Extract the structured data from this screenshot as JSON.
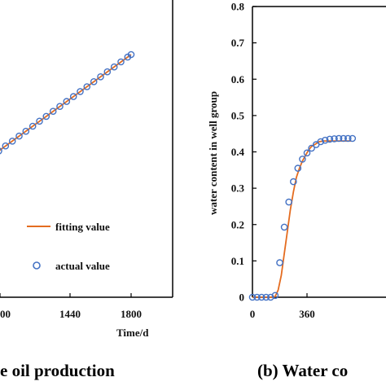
{
  "chart_data": [
    {
      "type": "line",
      "panel": "left",
      "caption": "e oil production",
      "xlabel": "Time/d",
      "ylabel": "",
      "x_ticks": [
        "00",
        "1440",
        "1800"
      ],
      "legend": {
        "placement": "bottom-right",
        "entries": [
          "fitting value",
          "actual value"
        ]
      },
      "series": [
        {
          "name": "fitting value",
          "style": "line",
          "color": "#e46c20",
          "x": [
            950,
            1800
          ],
          "y": [
            0.195,
            0.865
          ]
        },
        {
          "name": "actual value",
          "style": "marker",
          "color": "#4472c4",
          "x": [
            980,
            1020,
            1060,
            1100,
            1140,
            1180,
            1220,
            1260,
            1300,
            1340,
            1380,
            1420,
            1460,
            1500,
            1540,
            1580,
            1620,
            1660,
            1700,
            1740,
            1780,
            1800
          ],
          "y": [
            0.219,
            0.25,
            0.282,
            0.313,
            0.345,
            0.376,
            0.408,
            0.44,
            0.471,
            0.503,
            0.534,
            0.566,
            0.597,
            0.629,
            0.66,
            0.692,
            0.723,
            0.755,
            0.786,
            0.818,
            0.849,
            0.865
          ]
        }
      ]
    },
    {
      "type": "line",
      "panel": "right",
      "caption": "(b) Water co",
      "ylabel": "water content in well group",
      "ylim": [
        0,
        0.8
      ],
      "y_ticks": [
        "0",
        "0.1",
        "0.2",
        "0.3",
        "0.4",
        "0.5",
        "0.6",
        "0.7",
        "0.8"
      ],
      "x_ticks": [
        "0",
        "360"
      ],
      "series": [
        {
          "name": "fitting value",
          "style": "line",
          "color": "#e46c20",
          "x": [
            0,
            30,
            60,
            90,
            120,
            150,
            170,
            190,
            210,
            230,
            250,
            270,
            290,
            310,
            330,
            350,
            370,
            390,
            410,
            440,
            470,
            500,
            530,
            560,
            590,
            620,
            650
          ],
          "y": [
            0,
            0,
            0,
            0,
            0,
            0.002,
            0.02,
            0.06,
            0.12,
            0.18,
            0.24,
            0.29,
            0.33,
            0.355,
            0.375,
            0.39,
            0.405,
            0.415,
            0.42,
            0.428,
            0.43,
            0.43,
            0.43,
            0.43,
            0.43,
            0.43,
            0.43
          ]
        },
        {
          "name": "actual value",
          "style": "marker",
          "color": "#4472c4",
          "x": [
            0,
            30,
            60,
            90,
            120,
            150,
            180,
            210,
            240,
            270,
            300,
            330,
            360,
            390,
            420,
            450,
            480,
            510,
            540,
            570,
            600,
            630,
            660
          ],
          "y": [
            0,
            0,
            0,
            0,
            0,
            0.005,
            0.095,
            0.193,
            0.262,
            0.318,
            0.355,
            0.38,
            0.397,
            0.41,
            0.42,
            0.428,
            0.432,
            0.435,
            0.436,
            0.437,
            0.437,
            0.437,
            0.437
          ]
        }
      ]
    }
  ]
}
